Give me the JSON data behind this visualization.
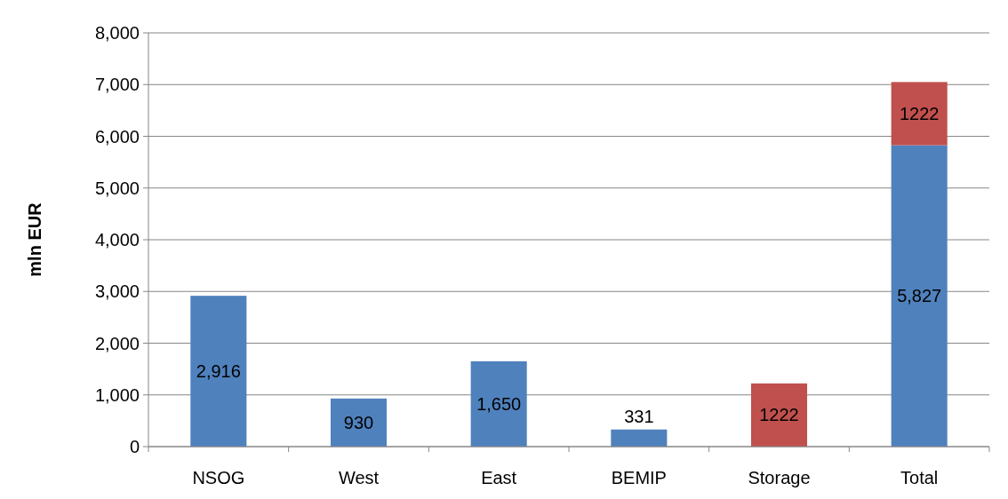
{
  "chart_data": {
    "type": "bar",
    "stacked": true,
    "ylabel": "mln EUR",
    "categories": [
      "NSOG",
      "West",
      "East",
      "BEMIP",
      "Storage",
      "Total"
    ],
    "series": [
      {
        "color": "#4f81bd",
        "values": [
          2916,
          930,
          1650,
          331,
          null,
          5827
        ],
        "value_labels": [
          "2,916",
          "930",
          "1,650",
          "331",
          null,
          "5,827"
        ]
      },
      {
        "color": "#c0504d",
        "values": [
          null,
          null,
          null,
          null,
          1222,
          1222
        ],
        "value_labels": [
          null,
          null,
          null,
          null,
          "1222",
          "1222"
        ]
      }
    ],
    "ylim": [
      0,
      8000
    ],
    "yticks": [
      0,
      {
        "value": 1000,
        "label": "1,000"
      },
      {
        "value": 2000,
        "label": "2,000"
      },
      {
        "value": 3000,
        "label": "3,000"
      },
      {
        "value": 4000,
        "label": "4,000"
      },
      {
        "value": 5000,
        "label": "5,000"
      },
      {
        "value": 6000,
        "label": "6,000"
      },
      {
        "value": 7000,
        "label": "7,000"
      },
      {
        "value": 8000,
        "label": "8,000"
      }
    ],
    "grid": "y"
  }
}
